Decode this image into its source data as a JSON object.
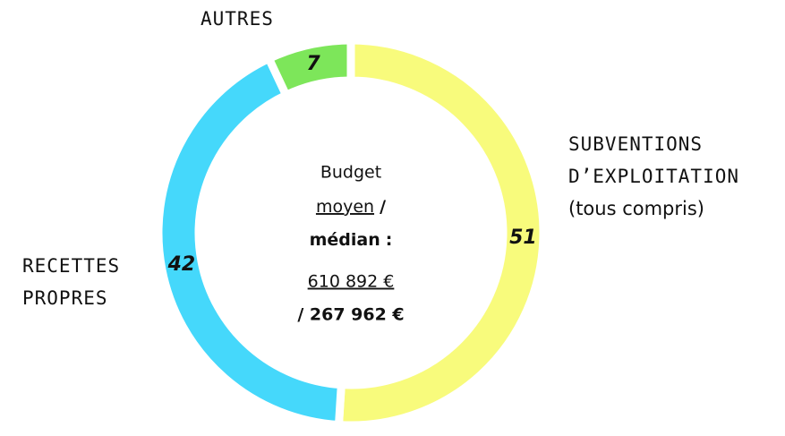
{
  "chart_data": {
    "type": "pie",
    "donut": true,
    "categories": [
      "SUBVENTIONS D’EXPLOITATION",
      "RECETTES PROPRES",
      "AUTRES"
    ],
    "category_notes": [
      "(tous compris)",
      null,
      null
    ],
    "values": [
      51,
      42,
      7
    ],
    "colors": [
      "#f8fb7c",
      "#45d8fb",
      "#7de65a"
    ],
    "center": {
      "budget": "Budget",
      "moyen": "moyen",
      "slash": "/",
      "median": "médian",
      "colon": ":",
      "mean_value": "610 892 €",
      "median_value": "/ 267 962 €"
    }
  }
}
